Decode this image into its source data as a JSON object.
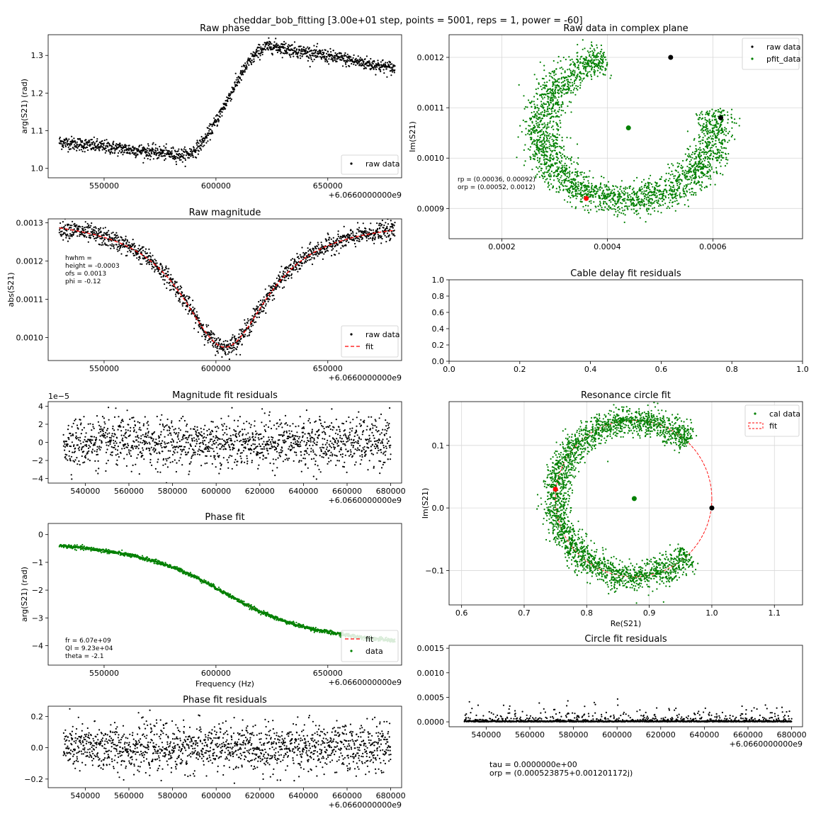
{
  "figure": {
    "suptitle": "cheddar_bob_fitting [3.00e+01 step, points = 5001, reps = 1, power = -60]",
    "footer_lines": [
      "tau = 0.0000000e+00",
      "orp = (0.000523875+0.001201172j)"
    ]
  },
  "chart_data": [
    {
      "id": "raw_phase",
      "type": "scatter",
      "title": "Raw phase",
      "xlabel": "",
      "ylabel": "arg(S21) (rad)",
      "x_offset_label": "+6.0660000000e9",
      "xlim": [
        525000,
        683000
      ],
      "ylim": [
        0.975,
        1.355
      ],
      "xticks": [
        550000,
        600000,
        650000
      ],
      "xtick_labels": [
        "550000",
        "600000",
        "650000"
      ],
      "yticks": [
        1.0,
        1.1,
        1.2,
        1.3
      ],
      "ytick_labels": [
        "1.0",
        "1.1",
        "1.2",
        "1.3"
      ],
      "grid": false,
      "legend_position": "lower-right",
      "series": [
        {
          "name": "raw data",
          "style": "dots",
          "color": "#000000",
          "model": "phase_raw",
          "x_range": [
            530000,
            680000
          ],
          "noise": 0.009
        }
      ]
    },
    {
      "id": "raw_magnitude",
      "type": "scatter",
      "title": "Raw magnitude",
      "xlabel": "",
      "ylabel": "abs(S21)",
      "x_offset_label": "+6.0660000000e9",
      "xlim": [
        525000,
        683000
      ],
      "ylim": [
        0.00094,
        0.00131
      ],
      "xticks": [
        550000,
        600000,
        650000
      ],
      "xtick_labels": [
        "550000",
        "600000",
        "650000"
      ],
      "yticks": [
        0.001,
        0.0011,
        0.0012,
        0.0013
      ],
      "ytick_labels": [
        "0.0010",
        "0.0011",
        "0.0012",
        "0.0013"
      ],
      "grid": false,
      "legend_position": "lower-right",
      "annotations": [
        "hwhm = ",
        "height = -0.0003",
        "ofs = 0.0013",
        "phi = -0.12"
      ],
      "series": [
        {
          "name": "raw data",
          "style": "dots",
          "color": "#000000",
          "model": "mag_raw",
          "x_range": [
            530000,
            680000
          ],
          "noise": 1.2e-05
        },
        {
          "name": "fit",
          "style": "dashed",
          "color": "#ff0000",
          "model": "mag_raw",
          "x_range": [
            530000,
            680000
          ]
        }
      ]
    },
    {
      "id": "mag_residuals",
      "type": "scatter",
      "title": "Magnitude fit residuals",
      "xlabel": "",
      "ylabel": "",
      "x_offset_label": "+6.0660000000e9",
      "y_scale_label": "1e−5",
      "xlim": [
        523000,
        685000
      ],
      "ylim": [
        -4.5,
        4.5
      ],
      "xticks": [
        540000,
        560000,
        580000,
        600000,
        620000,
        640000,
        660000,
        680000
      ],
      "xtick_labels": [
        "540000",
        "560000",
        "580000",
        "600000",
        "620000",
        "640000",
        "660000",
        "680000"
      ],
      "yticks": [
        -4,
        -2,
        0,
        2,
        4
      ],
      "ytick_labels": [
        "−4",
        "−2",
        "0",
        "2",
        "4"
      ],
      "grid": false,
      "series": [
        {
          "name": "residuals",
          "style": "dots",
          "color": "#000000",
          "model": "zero",
          "x_range": [
            530000,
            680000
          ],
          "noise": 1.35
        }
      ]
    },
    {
      "id": "phase_fit",
      "type": "scatter",
      "title": "Phase fit",
      "xlabel": "Frequency (Hz)",
      "ylabel": "arg(S21) (rad)",
      "x_offset_label": "+6.0660000000e9",
      "xlim": [
        525000,
        683000
      ],
      "ylim": [
        -4.7,
        0.4
      ],
      "xticks": [
        550000,
        600000,
        650000
      ],
      "xtick_labels": [
        "550000",
        "600000",
        "650000"
      ],
      "yticks": [
        -4,
        -3,
        -2,
        -1,
        0
      ],
      "ytick_labels": [
        "−4",
        "−3",
        "−2",
        "−1",
        "0"
      ],
      "grid": false,
      "legend_position": "lower-right",
      "annotations": [
        "fr = 6.07e+09",
        "Ql = 9.23e+04",
        "theta = -2.1"
      ],
      "series": [
        {
          "name": "fit",
          "style": "dashed",
          "color": "#ff0000",
          "model": "phase_fit",
          "x_range": [
            530000,
            680000
          ]
        },
        {
          "name": "data",
          "style": "dots",
          "color": "#008000",
          "model": "phase_fit",
          "x_range": [
            530000,
            680000
          ],
          "noise": 0.035
        }
      ]
    },
    {
      "id": "phase_residuals",
      "type": "scatter",
      "title": "Phase fit residuals",
      "xlabel": "",
      "ylabel": "",
      "x_offset_label": "+6.0660000000e9",
      "xlim": [
        523000,
        685000
      ],
      "ylim": [
        -0.255,
        0.265
      ],
      "xticks": [
        540000,
        560000,
        580000,
        600000,
        620000,
        640000,
        660000,
        680000
      ],
      "xtick_labels": [
        "540000",
        "560000",
        "580000",
        "600000",
        "620000",
        "640000",
        "660000",
        "680000"
      ],
      "yticks": [
        -0.2,
        0.0,
        0.2
      ],
      "ytick_labels": [
        "−0.2",
        "0.0",
        "0.2"
      ],
      "grid": false,
      "series": [
        {
          "name": "residuals",
          "style": "dots",
          "color": "#000000",
          "model": "zero",
          "x_range": [
            530000,
            680000
          ],
          "noise": 0.075
        }
      ]
    },
    {
      "id": "raw_complex",
      "type": "scatter",
      "title": "Raw data in complex plane",
      "xlabel": "",
      "ylabel": "Im(S21)",
      "xlim": [
        0.0001,
        0.00077
      ],
      "ylim": [
        0.00084,
        0.001245
      ],
      "xticks": [
        0.0002,
        0.0004,
        0.0006
      ],
      "xtick_labels": [
        "0.0002",
        "0.0004",
        "0.0006"
      ],
      "yticks": [
        0.0009,
        0.001,
        0.0011,
        0.0012
      ],
      "ytick_labels": [
        "0.0009",
        "0.0010",
        "0.0011",
        "0.0012"
      ],
      "grid": true,
      "legend_position": "top-right",
      "annotations": [
        "rp = (0.00036, 0.00092)",
        "orp = (0.00052, 0.0012)"
      ],
      "circle": {
        "center": [
          0.00044,
          0.00106
        ],
        "radius": 0.000165,
        "theta_start": 105,
        "theta_end": 375,
        "noise": 1.8e-05
      },
      "points": [
        {
          "x": 0.00044,
          "y": 0.00106,
          "color": "#008000"
        },
        {
          "x": 0.00036,
          "y": 0.00092,
          "color": "#ff0000"
        },
        {
          "x": 0.00052,
          "y": 0.0012,
          "color": "#000000"
        },
        {
          "x": 0.000615,
          "y": 0.00108,
          "color": "#000000"
        }
      ],
      "series": [
        {
          "name": "raw data",
          "style": "dots",
          "color": "#000000"
        },
        {
          "name": "pfit_data",
          "style": "dots",
          "color": "#008000"
        }
      ]
    },
    {
      "id": "cable_delay",
      "type": "scatter",
      "title": "Cable delay fit residuals",
      "xlabel": "",
      "ylabel": "",
      "xlim": [
        0,
        1
      ],
      "ylim": [
        0,
        1
      ],
      "xticks": [
        0,
        0.2,
        0.4,
        0.6,
        0.8,
        1.0
      ],
      "xtick_labels": [
        "0.0",
        "0.2",
        "0.4",
        "0.6",
        "0.8",
        "1.0"
      ],
      "yticks": [
        0,
        0.2,
        0.4,
        0.6,
        0.8,
        1.0
      ],
      "ytick_labels": [
        "0.0",
        "0.2",
        "0.4",
        "0.6",
        "0.8",
        "1.0"
      ],
      "grid": false,
      "series": []
    },
    {
      "id": "resonance_circle",
      "type": "scatter",
      "title": "Resonance circle fit",
      "xlabel": "Re(S21)",
      "ylabel": "Im(S21)",
      "xlim": [
        0.58,
        1.145
      ],
      "ylim": [
        -0.155,
        0.17
      ],
      "xticks": [
        0.6,
        0.7,
        0.8,
        0.9,
        1.0,
        1.1
      ],
      "xtick_labels": [
        "0.6",
        "0.7",
        "0.8",
        "0.9",
        "1.0",
        "1.1"
      ],
      "yticks": [
        -0.1,
        0.0,
        0.1
      ],
      "ytick_labels": [
        "−0.1",
        "0.0",
        "0.1"
      ],
      "grid": true,
      "legend_position": "top-right",
      "circle": {
        "center": [
          0.875,
          0.015
        ],
        "radius": 0.125,
        "theta_start": 45,
        "theta_end": 315,
        "noise": 0.011
      },
      "points": [
        {
          "x": 0.876,
          "y": 0.015,
          "color": "#008000"
        },
        {
          "x": 0.75,
          "y": 0.03,
          "color": "#ff0000"
        },
        {
          "x": 1.0,
          "y": 0.0,
          "color": "#000000"
        }
      ],
      "series": [
        {
          "name": "cal data",
          "style": "dots",
          "color": "#008000"
        },
        {
          "name": "fit",
          "style": "dashed-circle",
          "color": "#ff0000"
        }
      ]
    },
    {
      "id": "circle_residuals",
      "type": "scatter",
      "title": "Circle fit residuals",
      "xlabel": "",
      "ylabel": "",
      "x_offset_label": "+6.0660000000e9",
      "xlim": [
        523000,
        685000
      ],
      "ylim": [
        -0.0001,
        0.00156
      ],
      "xticks": [
        540000,
        560000,
        580000,
        600000,
        620000,
        640000,
        660000,
        680000
      ],
      "xtick_labels": [
        "540000",
        "560000",
        "580000",
        "600000",
        "620000",
        "640000",
        "660000",
        "680000"
      ],
      "yticks": [
        0.0,
        0.0005,
        0.001,
        0.0015
      ],
      "ytick_labels": [
        "0.0000",
        "0.0005",
        "0.0010",
        "0.0015"
      ],
      "grid": false,
      "series": [
        {
          "name": "residuals",
          "style": "dots",
          "color": "#000000",
          "model": "exp_pos",
          "x_range": [
            530000,
            680000
          ],
          "noise": 8e-05
        }
      ]
    }
  ]
}
